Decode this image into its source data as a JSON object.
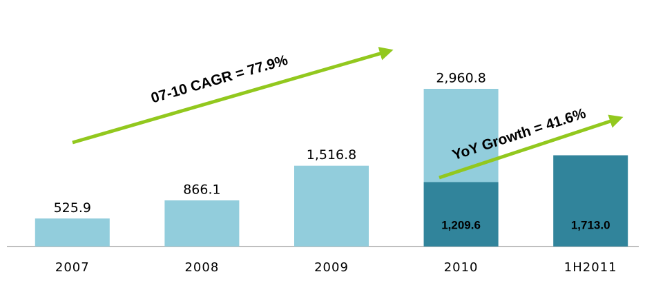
{
  "chart_data": {
    "type": "bar",
    "categories": [
      "2007",
      "2008",
      "2009",
      "2010",
      "1H2011"
    ],
    "series": [
      {
        "color": "#92cddc",
        "values": [
          525.9,
          866.1,
          1516.8,
          2960.8,
          null
        ],
        "value_labels": [
          "525.9",
          "866.1",
          "1,516.8",
          "2,960.8",
          null
        ]
      },
      {
        "color": "#31849b",
        "values": [
          null,
          null,
          null,
          1209.6,
          1713.0
        ],
        "value_labels": [
          null,
          null,
          null,
          "1,209.6",
          "1,713.0"
        ]
      }
    ],
    "annotations": [
      {
        "text": "07-10 CAGR = 77.9%",
        "color": "#92c81e"
      },
      {
        "text": "YoY Growth =  41.6%",
        "color": "#92c81e"
      }
    ]
  }
}
